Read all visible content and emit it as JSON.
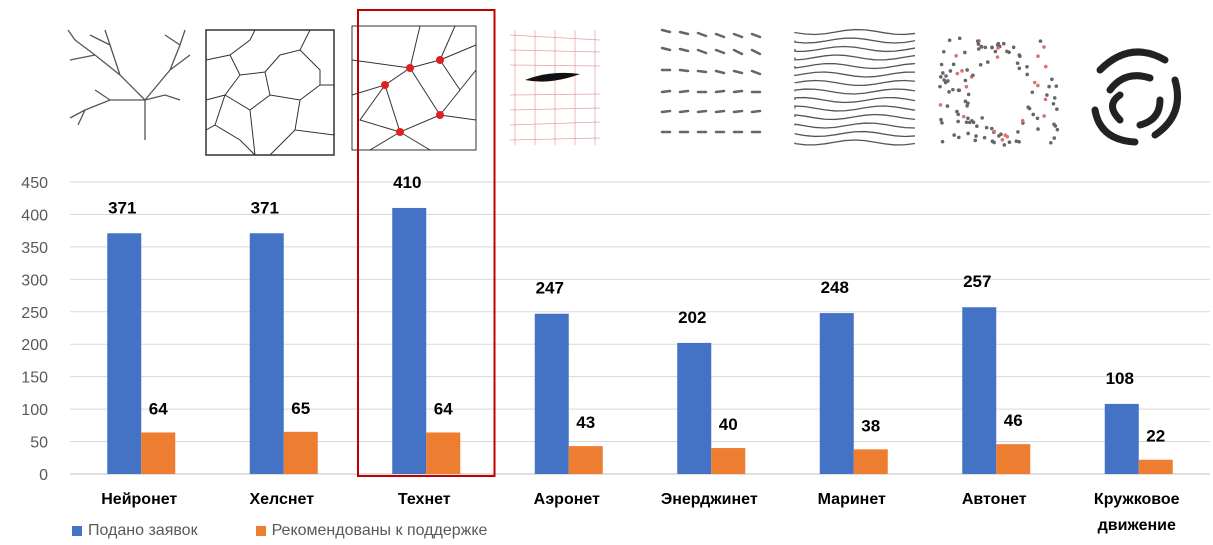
{
  "chart_data": {
    "type": "bar",
    "categories": [
      "Нейронет",
      "Хелснет",
      "Технет",
      "Аэронет",
      "Энерджинет",
      "Маринет",
      "Автонет",
      "Кружковое\nдвижение"
    ],
    "series": [
      {
        "name": "Подано заявок",
        "values": [
          371,
          371,
          410,
          247,
          202,
          248,
          257,
          108
        ],
        "color": "#4472C4"
      },
      {
        "name": "Рекомендованы к поддержке",
        "values": [
          64,
          65,
          64,
          43,
          40,
          38,
          46,
          22
        ],
        "color": "#ED7D31"
      }
    ],
    "ylim": [
      0,
      450
    ],
    "yticks": [
      0,
      50,
      100,
      150,
      200,
      250,
      300,
      350,
      400,
      450
    ],
    "grid": true,
    "legend_position": "bottom-left",
    "highlighted_category": "Технет",
    "highlight_color": "#C00000",
    "title": "",
    "xlabel": "",
    "ylabel": ""
  },
  "thumbnails": [
    {
      "icon": "fractal-tree-icon"
    },
    {
      "icon": "voronoi-mesh-icon"
    },
    {
      "icon": "triangulation-network-icon"
    },
    {
      "icon": "airfoil-mesh-icon"
    },
    {
      "icon": "vector-field-icon"
    },
    {
      "icon": "wave-lines-icon"
    },
    {
      "icon": "particle-ring-icon"
    },
    {
      "icon": "circular-knot-icon"
    }
  ]
}
